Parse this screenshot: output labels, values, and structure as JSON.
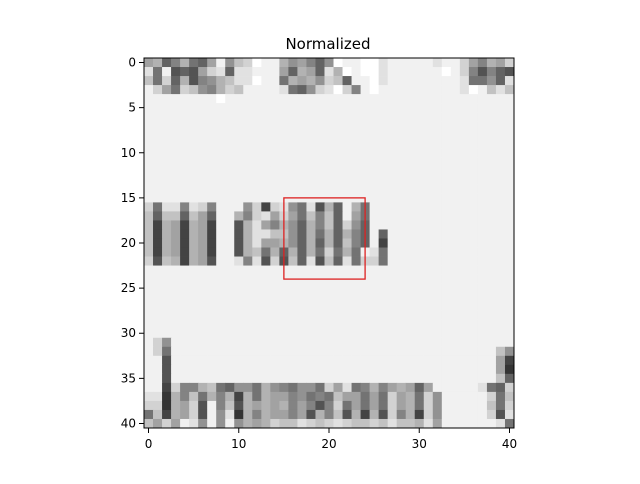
{
  "chart_data": {
    "type": "heatmap",
    "title": "Normalized",
    "colormap": "gray",
    "pixel_grid": [
      41,
      41
    ],
    "xlim": [
      -0.5,
      40.5
    ],
    "ylim": [
      40.5,
      -0.5
    ],
    "x_ticks": [
      0,
      10,
      20,
      30,
      40
    ],
    "y_ticks": [
      0,
      5,
      10,
      15,
      20,
      25,
      30,
      35,
      40
    ],
    "x_tick_labels": [
      "0",
      "10",
      "20",
      "30",
      "40"
    ],
    "y_tick_labels": [
      "0",
      "5",
      "10",
      "15",
      "20",
      "25",
      "30",
      "35",
      "40"
    ],
    "highlight_box": {
      "x": [
        15,
        24
      ],
      "y": [
        15,
        24
      ],
      "color": "#dd2222"
    },
    "rows": [
      "9a57a659e8bcfeea89758feeffdeeeeedeec97a9c",
      "d6e4549cd5ddeee95a95dafeffdeeeeeefec74754",
      "b6c5a478abddfee6a9a8cb5eefdeeeeeeeed6685d",
      "ec96cb87acbeeeed658cdfc7efeeeeeeeeedfebdb",
      "eeeeeeeefeeeeeeeeeeeeeeeeeeeeeeeeeeeeeeee",
      "eeeeeeeeeeeeeeeeeeeeeeeeeeeeeeeeeeeeeeeee",
      "eeeeeeeeeeeeeeeeeeeeeeeeeeeeeeeeeeeeeeeee",
      "eeeeeeeeeeeeeeeeeeeeeeeeeeeeeeeeeeeeeeeee",
      "eeeeeeeeeeeeeeeeeeeeeeeeeeeeeeeeeeeeeeeee",
      "eeeeeeeeeeeeeeeeeeeeeeeeeeeeeeeeeeeeeeeee",
      "eeeeeeeeeeeeeeeeeeeeeeeeeeeeeeeeeeeeeeeee",
      "eeeeeeeeeeeeeeeeeeeeeeeeeeeeeeeeeeeeeeeee",
      "eeeeeeeeeeeeeeeeeeeeeeeeeeeeeeeeeeeeeeeee",
      "eeeeeeeeeeeeeeeeeeeeeeeeeeeeeeeeeeeeeeeee",
      "eeeeeeeeeeeeeeeeeeeeeeeeeeeeeeeeeeeeeeeee",
      "eeeeeeeeeeeeeeeeeeeeeeeeeeeeeeeeeeeeeeeee",
      "c6dd7dc7eee8c3cd86d4a5ea6eeeeeeeeeeeeeeee",
      "b5bb5b95eea7cd9c96b7b5e96eeeeeeeeeeeeeeee",
      "b3a93a93ee4ad97a85a7b5c85eeeeeeeeeeeeeeee",
      "b3a93a93ee4addbb85a6a5a75e5eeeeeeeeeeeeee",
      "b3a93a93ee4ad99a85a5a5b75e3eeeeeeeeeeeeee",
      "b3a93a93ee4ab6a5a5a6c6a6ed6eeeeeeeeeeeeee",
      "c4ba3a94eed7d4c4b5d4b5d6cc6eeeeeeeeeeeeee",
      "eeeeeeeeeeeeeeeeeeeeeeeeeeeeeeeeeeeeeeeee",
      "eeeeeeeeeeeeeeeeeeeeeeeeeeeeeeeeeeeeeeeee",
      "eeeeeeeeeeeeeeeeeeeeeeeeeeeeeeeeeeeeeeeee",
      "eeeeeeeeeeeeeeeeeeeeeeeeeeeeeeeeeeeeeeeee",
      "eeeeeeeeeeeeeeeeeeeeeeeeeeeeeeeeeeeeeeeee",
      "eeeeeeeeeeeeeeeeeeeeeeeeeeeeeeeeeeeeeeeee",
      "eeeeeeeeeeeeeeeeeeeeeeeeeeeeeeeeeeeeeeeee",
      "eeeeeeeeeeeeeeeeeeeeeeeeeeeeeeeeeeeeeeeee",
      "ec8eeeeeeeeeeeeeeeeeeeeeeeeeeeeeeeeeeeeee",
      "ec6eeeeeeeeeeeeeeeeeeeeeeeeeeeeeeeeeeeeb8",
      "ee4eeeeeeeeeeeeeeeeeeeeeeeeeeeeeeeeeeee93",
      "ee4eeeeeeeeeeeeeeeeeeeeeeeeeeeeeeeeeeee92",
      "ee4eeeeeeeeeeeeeeeeeeeeeeeeeeeeeeeeeeeeb5",
      "ee3c77ab65886a876886c9d67a79a959eeeeed65c",
      "dd2a7b6a7a3a6a9978676b99696c9a6c8eeeeec6b",
      "cc2a9c4e7b4a9a9a79747c69696c9a6c8eeeeeb6c",
      "6b3a9c4e8d2a7a99794a7b4a3a4c7a3c8eeeeec4d",
      "b9c9ed8e8e8a9acbbdcbcdcbbcbdbbad9eeeeeed6"
    ]
  }
}
